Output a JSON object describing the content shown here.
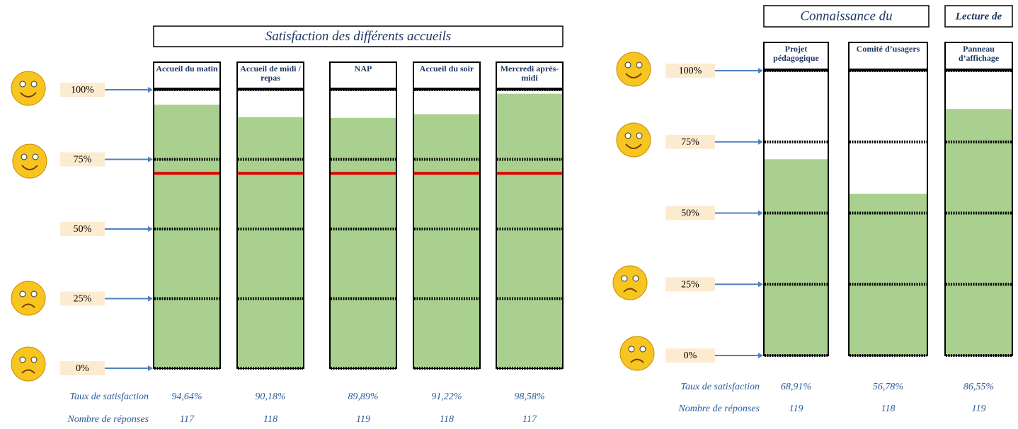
{
  "chart_data": [
    {
      "type": "bar",
      "title": "Satisfaction des différents accueils",
      "categories": [
        "Accueil du matin",
        "Accueil de midi / repas",
        "NAP",
        "Accueil du soir",
        "Mercredi après-midi"
      ],
      "values": [
        94.64,
        90.18,
        89.89,
        91.22,
        98.58
      ],
      "value_labels": [
        "94,64%",
        "90,18%",
        "89,89%",
        "91,22%",
        "98,58%"
      ],
      "counts": [
        117,
        118,
        119,
        118,
        117
      ],
      "row_labels": [
        "Taux de satisfaction",
        "Nombre de réponses"
      ],
      "color": "#a9d08e",
      "reference_line": 70,
      "reference_color": "#e00000",
      "ylim": [
        0,
        100
      ],
      "yticks": [
        {
          "value": 0,
          "label": "0%"
        },
        {
          "value": 25,
          "label": "25%"
        },
        {
          "value": 50,
          "label": "50%"
        },
        {
          "value": 75,
          "label": "75%"
        },
        {
          "value": 100,
          "label": "100%"
        }
      ]
    },
    {
      "type": "bar",
      "group_titles": [
        "Connaissance du",
        "Lecture de"
      ],
      "groups": [
        0,
        0,
        1
      ],
      "categories": [
        "Projet pédagogique",
        "Comité d’usagers",
        "Panneau d’affichage"
      ],
      "values": [
        68.91,
        56.78,
        86.55
      ],
      "value_labels": [
        "68,91%",
        "56,78%",
        "86,55%"
      ],
      "counts": [
        119,
        118,
        119
      ],
      "row_labels": [
        "Taux de satisfaction",
        "Nombre de réponses"
      ],
      "color": "#a9d08e",
      "ylim": [
        0,
        100
      ],
      "yticks": [
        {
          "value": 0,
          "label": "0%"
        },
        {
          "value": 25,
          "label": "25%"
        },
        {
          "value": 50,
          "label": "50%"
        },
        {
          "value": 75,
          "label": "75%"
        },
        {
          "value": 100,
          "label": "100%"
        }
      ]
    }
  ]
}
